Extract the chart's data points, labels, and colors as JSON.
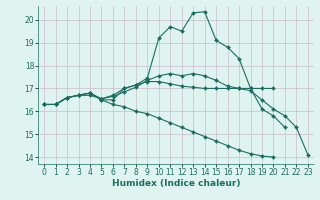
{
  "xlabel": "Humidex (Indice chaleur)",
  "bg_color": "#dff4f0",
  "grid_color": "#ccbbcc",
  "line_color": "#1a6e60",
  "xlim": [
    -0.5,
    23.5
  ],
  "ylim": [
    13.7,
    20.6
  ],
  "xticks": [
    0,
    1,
    2,
    3,
    4,
    5,
    6,
    7,
    8,
    9,
    10,
    11,
    12,
    13,
    14,
    15,
    16,
    17,
    18,
    19,
    20,
    21,
    22,
    23
  ],
  "yticks": [
    14,
    15,
    16,
    17,
    18,
    19,
    20
  ],
  "line1_x": [
    0,
    1,
    2,
    3,
    4,
    5,
    6,
    7,
    8,
    9,
    10,
    11,
    12,
    13,
    14,
    15,
    16,
    17,
    18,
    19,
    20,
    21
  ],
  "line1_y": [
    16.3,
    16.3,
    16.6,
    16.7,
    16.8,
    16.5,
    16.5,
    17.0,
    17.15,
    17.45,
    19.2,
    19.7,
    19.5,
    20.3,
    20.35,
    19.1,
    18.8,
    18.3,
    17.0,
    16.1,
    15.8,
    15.3
  ],
  "line2_x": [
    0,
    1,
    2,
    3,
    4,
    5,
    6,
    7,
    8,
    9,
    10,
    11,
    12,
    13,
    14,
    15,
    16,
    17,
    18,
    19,
    20
  ],
  "line2_y": [
    16.3,
    16.3,
    16.6,
    16.7,
    16.8,
    16.55,
    16.7,
    17.0,
    17.15,
    17.3,
    17.3,
    17.2,
    17.1,
    17.05,
    17.0,
    17.0,
    17.0,
    17.0,
    17.0,
    17.0,
    17.0
  ],
  "line3_x": [
    0,
    1,
    2,
    3,
    4,
    5,
    6,
    7,
    8,
    9,
    10,
    11,
    12,
    13,
    14,
    15,
    16,
    17,
    18,
    19,
    20
  ],
  "line3_y": [
    16.3,
    16.3,
    16.6,
    16.7,
    16.8,
    16.5,
    16.3,
    16.2,
    16.0,
    15.9,
    15.7,
    15.5,
    15.3,
    15.1,
    14.9,
    14.7,
    14.5,
    14.3,
    14.15,
    14.05,
    14.0
  ],
  "line4_x": [
    0,
    1,
    2,
    3,
    4,
    5,
    6,
    7,
    8,
    9,
    10,
    11,
    12,
    13,
    14,
    15,
    16,
    17,
    18,
    19,
    20,
    21,
    22,
    23
  ],
  "line4_y": [
    16.3,
    16.3,
    16.6,
    16.7,
    16.7,
    16.55,
    16.65,
    16.85,
    17.05,
    17.35,
    17.55,
    17.65,
    17.55,
    17.65,
    17.55,
    17.35,
    17.1,
    17.0,
    16.9,
    16.5,
    16.1,
    15.8,
    15.3,
    14.1
  ]
}
